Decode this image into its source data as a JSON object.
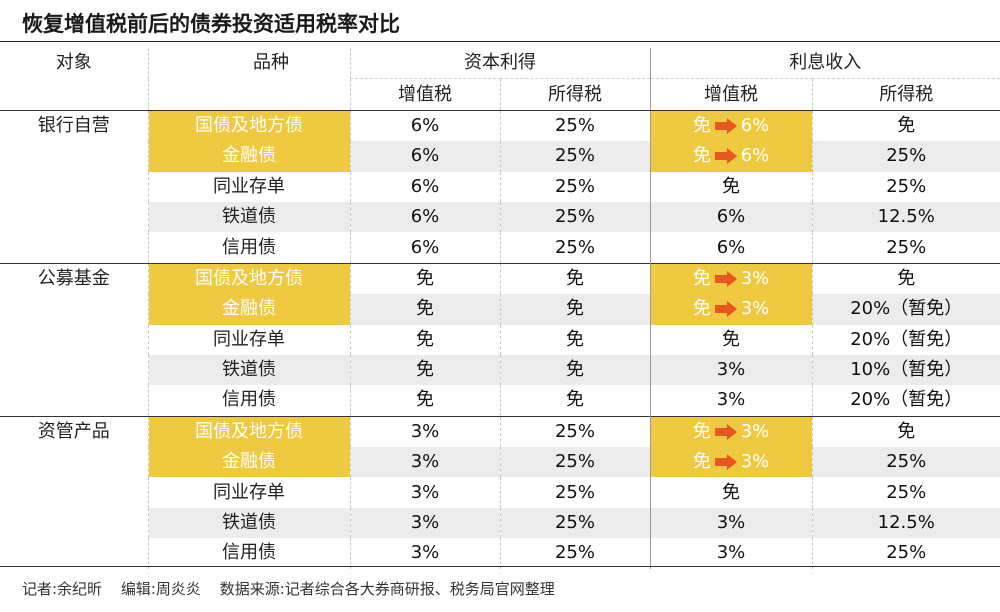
{
  "title": "恢复增值税前后的债券投资适用税率对比",
  "headers": {
    "object": "对象",
    "variety": "品种",
    "capital_gains": "资本利得",
    "interest_income": "利息收入",
    "vat": "增值税",
    "income_tax": "所得税"
  },
  "groups": [
    {
      "name": "银行自营",
      "rows": [
        {
          "variety": "国债及地方债",
          "cg_vat": "6%",
          "cg_tax": "25%",
          "ii_vat_from": "免",
          "ii_vat_to": "6%",
          "ii_tax": "免",
          "highlight": true
        },
        {
          "variety": "金融债",
          "cg_vat": "6%",
          "cg_tax": "25%",
          "ii_vat_from": "免",
          "ii_vat_to": "6%",
          "ii_tax": "25%",
          "highlight": true
        },
        {
          "variety": "同业存单",
          "cg_vat": "6%",
          "cg_tax": "25%",
          "ii_vat": "免",
          "ii_tax": "25%",
          "highlight": false
        },
        {
          "variety": "铁道债",
          "cg_vat": "6%",
          "cg_tax": "25%",
          "ii_vat": "6%",
          "ii_tax": "12.5%",
          "highlight": false
        },
        {
          "variety": "信用债",
          "cg_vat": "6%",
          "cg_tax": "25%",
          "ii_vat": "6%",
          "ii_tax": "25%",
          "highlight": false
        }
      ]
    },
    {
      "name": "公募基金",
      "rows": [
        {
          "variety": "国债及地方债",
          "cg_vat": "免",
          "cg_tax": "免",
          "ii_vat_from": "免",
          "ii_vat_to": "3%",
          "ii_tax": "免",
          "highlight": true
        },
        {
          "variety": "金融债",
          "cg_vat": "免",
          "cg_tax": "免",
          "ii_vat_from": "免",
          "ii_vat_to": "3%",
          "ii_tax": "20%（暂免）",
          "highlight": true
        },
        {
          "variety": "同业存单",
          "cg_vat": "免",
          "cg_tax": "免",
          "ii_vat": "免",
          "ii_tax": "20%（暂免）",
          "highlight": false
        },
        {
          "variety": "铁道债",
          "cg_vat": "免",
          "cg_tax": "免",
          "ii_vat": "3%",
          "ii_tax": "10%（暂免）",
          "highlight": false
        },
        {
          "variety": "信用债",
          "cg_vat": "免",
          "cg_tax": "免",
          "ii_vat": "3%",
          "ii_tax": "20%（暂免）",
          "highlight": false
        }
      ]
    },
    {
      "name": "资管产品",
      "rows": [
        {
          "variety": "国债及地方债",
          "cg_vat": "3%",
          "cg_tax": "25%",
          "ii_vat_from": "免",
          "ii_vat_to": "3%",
          "ii_tax": "免",
          "highlight": true
        },
        {
          "variety": "金融债",
          "cg_vat": "3%",
          "cg_tax": "25%",
          "ii_vat_from": "免",
          "ii_vat_to": "3%",
          "ii_tax": "25%",
          "highlight": true
        },
        {
          "variety": "同业存单",
          "cg_vat": "3%",
          "cg_tax": "25%",
          "ii_vat": "免",
          "ii_tax": "25%",
          "highlight": false
        },
        {
          "variety": "铁道债",
          "cg_vat": "3%",
          "cg_tax": "25%",
          "ii_vat": "3%",
          "ii_tax": "12.5%",
          "highlight": false
        },
        {
          "variety": "信用债",
          "cg_vat": "3%",
          "cg_tax": "25%",
          "ii_vat": "3%",
          "ii_tax": "25%",
          "highlight": false
        }
      ]
    }
  ],
  "footer": {
    "reporter": "记者:余纪昕",
    "editor": "编辑:周炎炎",
    "source": "数据来源:记者综合各大券商研报、税务局官网整理"
  },
  "colors": {
    "highlight": "#efc93f",
    "arrow": "#e8571f",
    "shade": "#ececec"
  },
  "icons": {
    "change_arrow": "arrow-right-icon"
  }
}
